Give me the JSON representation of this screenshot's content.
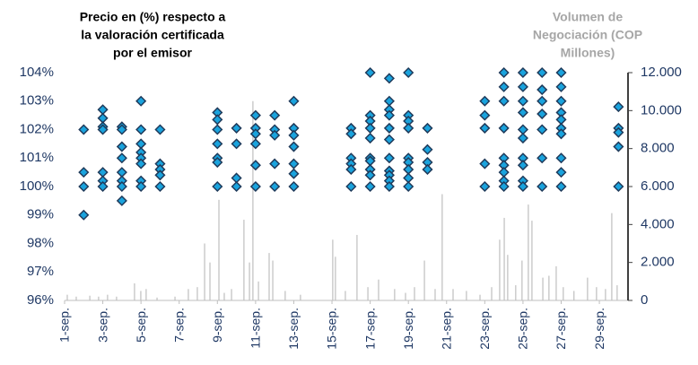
{
  "chart_data": {
    "type": "scatter",
    "title_lines": [
      "Precio en (%) respecto a",
      "la valoración certificada",
      "por el emisor"
    ],
    "y2label_lines": [
      "Volumen de",
      "Negociación (COP",
      "Millones)"
    ],
    "xlim": [
      1,
      30.5
    ],
    "xticks": [
      {
        "value": 1,
        "label": "1-sep."
      },
      {
        "value": 3,
        "label": "3-sep."
      },
      {
        "value": 5,
        "label": "5-sep."
      },
      {
        "value": 7,
        "label": "7-sep."
      },
      {
        "value": 9,
        "label": "9-sep."
      },
      {
        "value": 11,
        "label": "11-sep."
      },
      {
        "value": 13,
        "label": "13-sep."
      },
      {
        "value": 15,
        "label": "15-sep."
      },
      {
        "value": 17,
        "label": "17-sep."
      },
      {
        "value": 19,
        "label": "19-sep."
      },
      {
        "value": 21,
        "label": "21-sep."
      },
      {
        "value": 23,
        "label": "23-sep."
      },
      {
        "value": 25,
        "label": "25-sep."
      },
      {
        "value": 27,
        "label": "27-sep."
      },
      {
        "value": 29,
        "label": "29-sep."
      }
    ],
    "ylim": [
      96,
      104
    ],
    "yticks": [
      {
        "value": 96,
        "label": "96%"
      },
      {
        "value": 97,
        "label": "97%"
      },
      {
        "value": 98,
        "label": "98%"
      },
      {
        "value": 99,
        "label": "99%"
      },
      {
        "value": 100,
        "label": "100%"
      },
      {
        "value": 101,
        "label": "101%"
      },
      {
        "value": 102,
        "label": "102%"
      },
      {
        "value": 103,
        "label": "103%"
      },
      {
        "value": 104,
        "label": "104%"
      }
    ],
    "y2lim": [
      0,
      12000
    ],
    "y2ticks": [
      0,
      {
        "value": 2000,
        "label": "2.000"
      },
      {
        "value": 4000,
        "label": "4.000"
      },
      {
        "value": 6000,
        "label": "6.000"
      },
      {
        "value": 8000,
        "label": "8.000"
      },
      {
        "value": 10000,
        "label": "10.000"
      },
      {
        "value": 12000,
        "label": "12.000"
      }
    ],
    "series": [
      {
        "type": "bar",
        "axis": "y2",
        "color": "#bfbfbf",
        "x": [
          1.14,
          1.61,
          2.32,
          2.78,
          3.25,
          3.72,
          4.66,
          4.99,
          5.27,
          5.84,
          6.78,
          7.48,
          7.95,
          8.33,
          8.61,
          9.08,
          9.36,
          9.74,
          10.39,
          10.68,
          10.86,
          11.15,
          11.71,
          11.9,
          12.55,
          13.35,
          15.04,
          15.18,
          15.7,
          16.31,
          16.88,
          17.44,
          18.28,
          18.85,
          19.32,
          19.84,
          20.4,
          20.77,
          21.34,
          22.04,
          22.75,
          23.36,
          23.78,
          24.02,
          24.2,
          24.62,
          24.95,
          25.28,
          25.47,
          26.04,
          26.36,
          26.74,
          27.11,
          27.67,
          28.38,
          28.85,
          29.32,
          29.65,
          29.93
        ],
        "values": [
          300,
          200,
          250,
          200,
          300,
          200,
          900,
          500,
          600,
          150,
          200,
          600,
          700,
          3000,
          2000,
          5300,
          400,
          600,
          4250,
          2000,
          10500,
          1000,
          2500,
          2100,
          500,
          300,
          3200,
          2300,
          500,
          3450,
          700,
          1100,
          600,
          400,
          700,
          2100,
          600,
          5600,
          600,
          500,
          300,
          700,
          3200,
          4350,
          2400,
          800,
          2100,
          5050,
          4200,
          1200,
          1300,
          1800,
          700,
          500,
          1200,
          700,
          600,
          4600,
          800
        ]
      },
      {
        "type": "scatter",
        "color": "#1aa3dd",
        "edge": "#1f3a5a",
        "x": [
          2,
          2,
          2,
          2,
          3,
          3,
          3,
          3,
          3,
          3,
          3,
          4,
          4,
          4,
          4,
          4,
          4,
          4,
          4,
          5,
          5,
          5,
          5,
          5,
          5,
          5,
          5,
          6,
          6,
          6,
          6,
          6,
          9,
          9,
          9,
          9,
          9,
          9,
          9,
          10,
          10,
          10,
          10,
          11,
          11,
          11,
          11,
          11,
          11,
          12,
          12,
          12,
          12,
          12,
          13,
          13,
          13,
          13,
          13,
          13,
          13,
          16,
          16,
          16,
          16,
          16,
          16,
          17,
          17,
          17,
          17,
          17,
          17,
          17,
          17,
          17,
          17,
          18,
          18,
          18,
          18,
          18,
          18,
          18,
          18,
          18,
          18,
          18,
          19,
          19,
          19,
          19,
          19,
          19,
          19,
          19,
          19,
          20,
          20,
          20,
          20,
          23,
          23,
          23,
          23,
          23,
          24,
          24,
          24,
          24,
          24,
          24,
          24,
          24,
          24,
          25,
          25,
          25,
          25,
          25,
          25,
          25,
          25,
          25,
          25,
          26,
          26,
          26,
          26,
          26,
          26,
          26,
          27,
          27,
          27,
          27,
          27,
          27,
          27,
          27,
          27,
          27,
          30,
          30,
          30,
          30,
          30
        ],
        "values": [
          102,
          100.5,
          100,
          99,
          102.7,
          102.4,
          102.1,
          102,
          100.5,
          100.2,
          100,
          102.1,
          102,
          101.4,
          101,
          100.5,
          100.2,
          100,
          99.5,
          103,
          102,
          101.5,
          101.2,
          101,
          100.8,
          100.2,
          100,
          102,
          100.8,
          100.6,
          100.4,
          100,
          102.6,
          102.35,
          102,
          101.5,
          101,
          100.85,
          100,
          102.05,
          101.5,
          100.3,
          100,
          102.5,
          102.05,
          101.85,
          101.5,
          100.75,
          100,
          102.5,
          102,
          101.8,
          100.8,
          100,
          103,
          102.05,
          101.8,
          101.4,
          100.8,
          100.45,
          100,
          102.05,
          101.85,
          101,
          100.8,
          100.6,
          100,
          104,
          102.5,
          102.3,
          102.05,
          101.7,
          101,
          100.9,
          100.6,
          100.4,
          100,
          103.8,
          103,
          102.7,
          102.5,
          102.05,
          101.65,
          101,
          100.55,
          100.4,
          100.2,
          100,
          104,
          102.5,
          102.3,
          102.05,
          101,
          100.85,
          100.6,
          100.3,
          100,
          102.05,
          101.3,
          100.85,
          100.6,
          103,
          102.5,
          102.05,
          100.8,
          100,
          104,
          103.5,
          103,
          102.05,
          101,
          100.75,
          100.5,
          100.2,
          100,
          104,
          103.5,
          103,
          102.6,
          102,
          101.7,
          101,
          100.75,
          100.2,
          100,
          104,
          103.4,
          103,
          102.55,
          102,
          101,
          100,
          104,
          103.5,
          103,
          102.6,
          102.35,
          102.05,
          101.85,
          101,
          100.5,
          100,
          102.8,
          102.05,
          101.9,
          101.4,
          100
        ]
      }
    ]
  }
}
